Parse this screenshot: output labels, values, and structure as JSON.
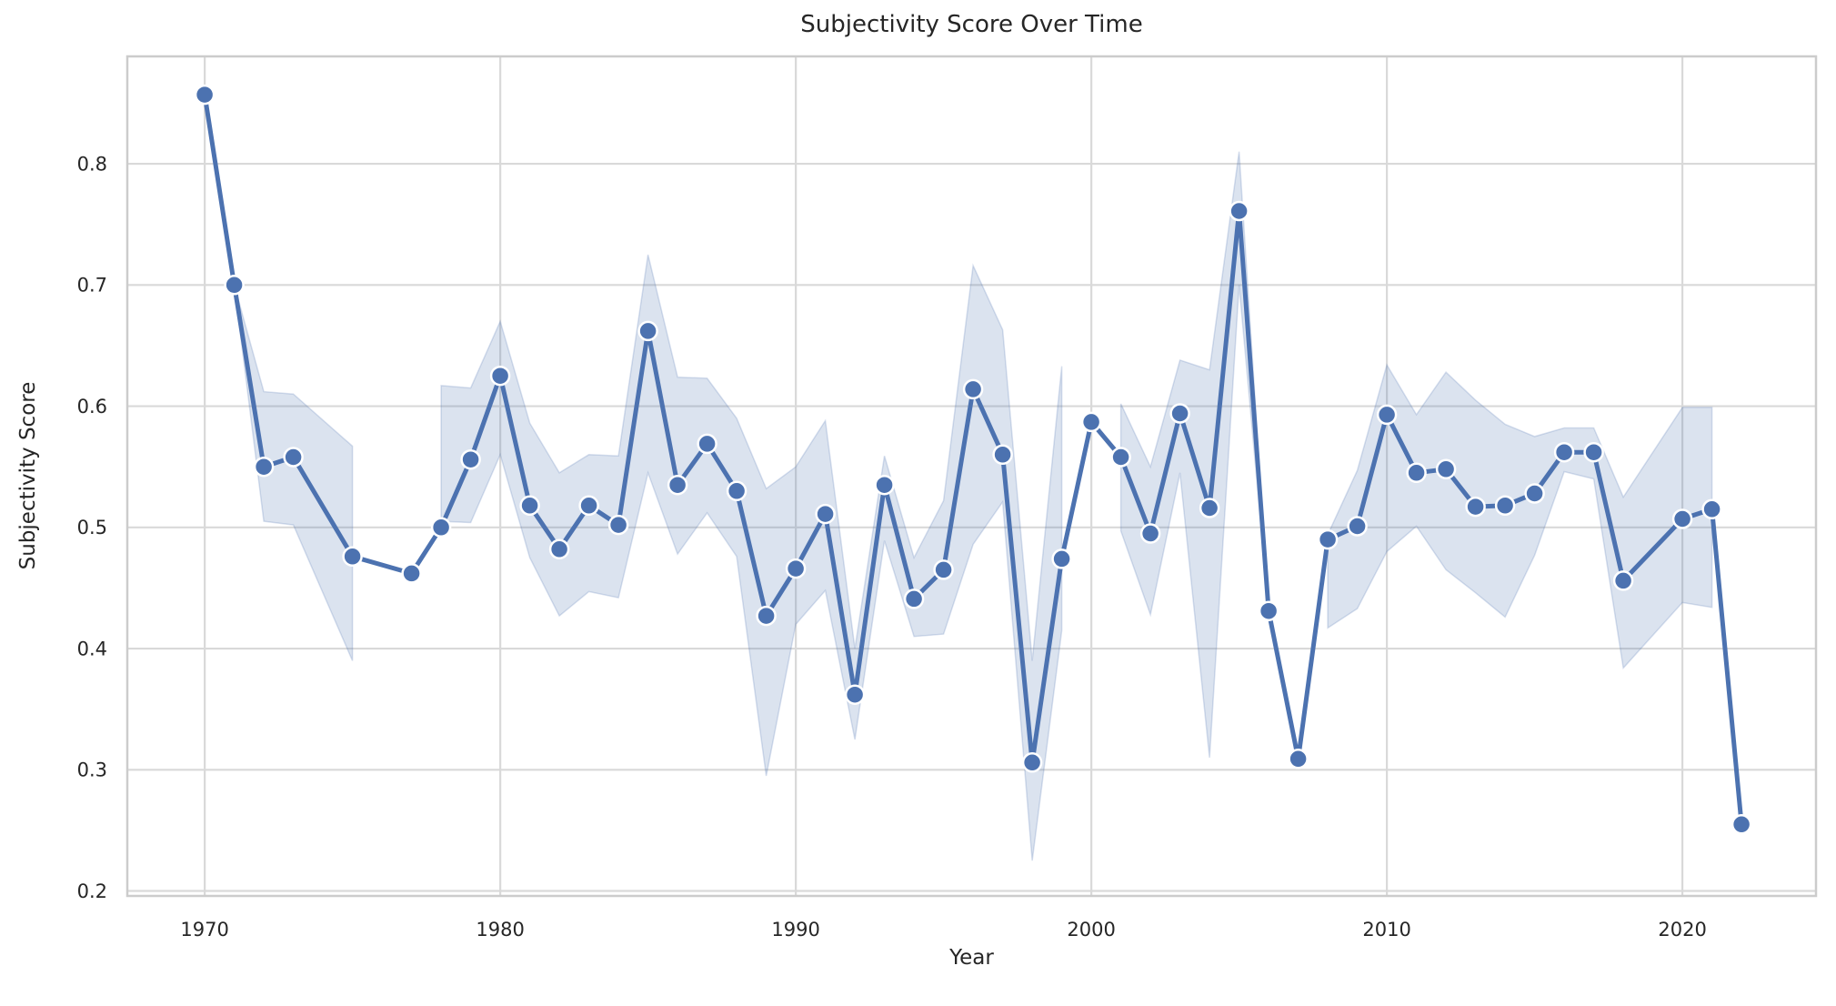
{
  "title": "Subjectivity Score Over Time",
  "chart_data": {
    "type": "line",
    "title": "Subjectivity Score Over Time",
    "xlabel": "Year",
    "ylabel": "Subjectivity Score",
    "x_ticks": [
      1970,
      1980,
      1990,
      2000,
      2010,
      2020
    ],
    "x_tick_labels": [
      "1970",
      "1980",
      "1990",
      "2000",
      "2010",
      "2020"
    ],
    "y_ticks": [
      0.2,
      0.3,
      0.4,
      0.5,
      0.6,
      0.7,
      0.8
    ],
    "y_tick_labels": [
      "0.2",
      "0.3",
      "0.4",
      "0.5",
      "0.6",
      "0.7",
      "0.8"
    ],
    "xlim": [
      1967.38,
      2024.52
    ],
    "ylim": [
      0.1959,
      0.8886
    ],
    "grid": true,
    "legend": false,
    "line_color": "#4c72b0",
    "marker_edge_color": "#ffffff",
    "band_fill_color": "rgba(76,114,176,0.20)",
    "band_edge_color": "rgba(76,114,176,0.22)",
    "grid_color": "#d9d9d9",
    "spine_color": "#cccccc",
    "text_color": "#262626",
    "series": [
      {
        "name": "Subjectivity Score",
        "x": [
          1970,
          1971,
          1972,
          1973,
          1975,
          1977,
          1978,
          1979,
          1980,
          1981,
          1982,
          1983,
          1984,
          1985,
          1986,
          1987,
          1988,
          1989,
          1990,
          1991,
          1992,
          1993,
          1994,
          1995,
          1996,
          1997,
          1998,
          1999,
          2000,
          2001,
          2002,
          2003,
          2004,
          2005,
          2006,
          2007,
          2008,
          2009,
          2010,
          2011,
          2012,
          2013,
          2014,
          2015,
          2016,
          2017,
          2018,
          2020,
          2021,
          2022
        ],
        "y": [
          0.857,
          0.7,
          0.55,
          0.558,
          0.476,
          0.462,
          0.5,
          0.556,
          0.625,
          0.518,
          0.482,
          0.518,
          0.502,
          0.662,
          0.535,
          0.569,
          0.53,
          0.427,
          0.466,
          0.511,
          0.362,
          0.535,
          0.441,
          0.465,
          0.614,
          0.56,
          0.306,
          0.474,
          0.587,
          0.558,
          0.495,
          0.594,
          0.516,
          0.761,
          0.431,
          0.309,
          0.49,
          0.501,
          0.593,
          0.545,
          0.548,
          0.517,
          0.518,
          0.528,
          0.562,
          0.562,
          0.456,
          0.507,
          0.515,
          0.255
        ],
        "ci_upper": [
          null,
          0.7,
          0.612,
          0.61,
          0.567,
          null,
          0.617,
          0.615,
          0.67,
          0.586,
          0.545,
          0.56,
          0.559,
          0.725,
          0.624,
          0.623,
          0.59,
          0.532,
          0.55,
          0.588,
          0.4,
          0.559,
          0.475,
          0.522,
          0.716,
          0.663,
          0.39,
          0.633,
          null,
          0.602,
          0.55,
          0.638,
          0.63,
          0.81,
          0.431,
          null,
          0.494,
          0.547,
          0.634,
          0.593,
          0.628,
          0.605,
          0.585,
          0.575,
          0.582,
          0.582,
          0.525,
          0.599,
          0.599,
          null
        ],
        "ci_lower": [
          null,
          0.7,
          0.505,
          0.502,
          0.39,
          null,
          0.505,
          0.504,
          0.56,
          0.475,
          0.427,
          0.447,
          0.442,
          0.545,
          0.478,
          0.512,
          0.476,
          0.295,
          0.42,
          0.448,
          0.325,
          0.489,
          0.41,
          0.412,
          0.486,
          0.521,
          0.225,
          0.415,
          null,
          0.497,
          0.428,
          0.545,
          0.31,
          0.7,
          0.431,
          null,
          0.417,
          0.433,
          0.48,
          0.501,
          0.465,
          0.446,
          0.426,
          0.477,
          0.546,
          0.54,
          0.384,
          0.438,
          0.434,
          null
        ]
      }
    ]
  }
}
